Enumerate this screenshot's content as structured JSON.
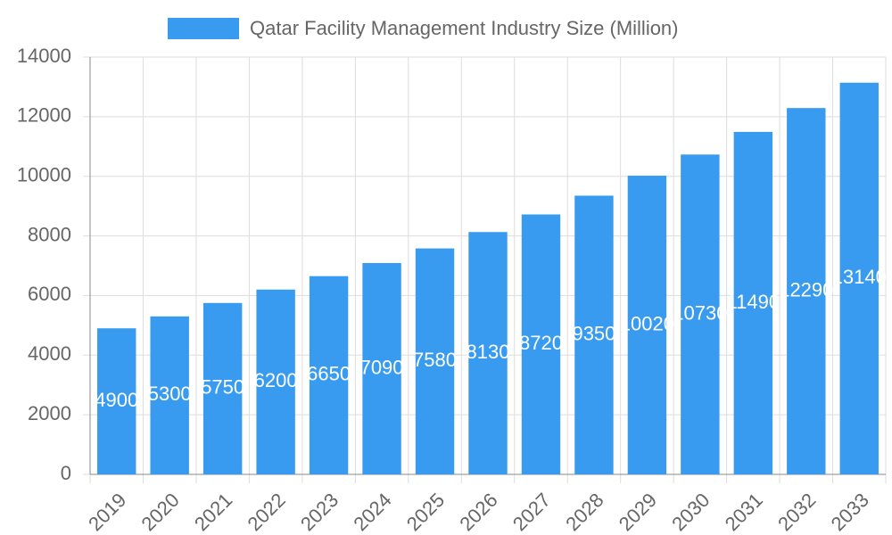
{
  "chart_data": {
    "type": "bar",
    "categories": [
      "2019",
      "2020",
      "2021",
      "2022",
      "2023",
      "2024",
      "2025",
      "2026",
      "2027",
      "2028",
      "2029",
      "2030",
      "2031",
      "2032",
      "2033"
    ],
    "series": [
      {
        "name": "Qatar Facility Management Industry Size (Million)",
        "color": "#399bf0",
        "values": [
          4900,
          5300,
          5750,
          6200,
          6650,
          7090,
          7580,
          8130,
          8720,
          9350,
          10020,
          10730,
          11490,
          12290,
          13140
        ]
      }
    ],
    "ylim": [
      0,
      14000
    ],
    "yticks": [
      0,
      2000,
      4000,
      6000,
      8000,
      10000,
      12000,
      14000
    ],
    "grid": true,
    "legend": "top"
  }
}
